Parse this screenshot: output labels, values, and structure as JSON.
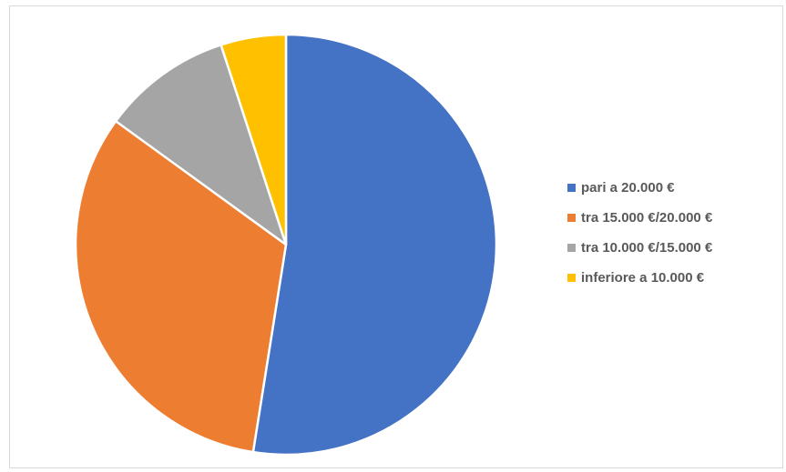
{
  "chart_data": {
    "type": "pie",
    "categories": [
      "pari a 20.000 €",
      "tra 15.000 €/20.000 €",
      "tra 10.000 €/15.000 €",
      "inferiore a 10.000 €"
    ],
    "values": [
      52.5,
      32.5,
      10.0,
      5.0
    ],
    "colors": [
      "#4472C4",
      "#ED7D31",
      "#A5A5A5",
      "#FFC000"
    ],
    "title": "",
    "legend_position": "right"
  }
}
